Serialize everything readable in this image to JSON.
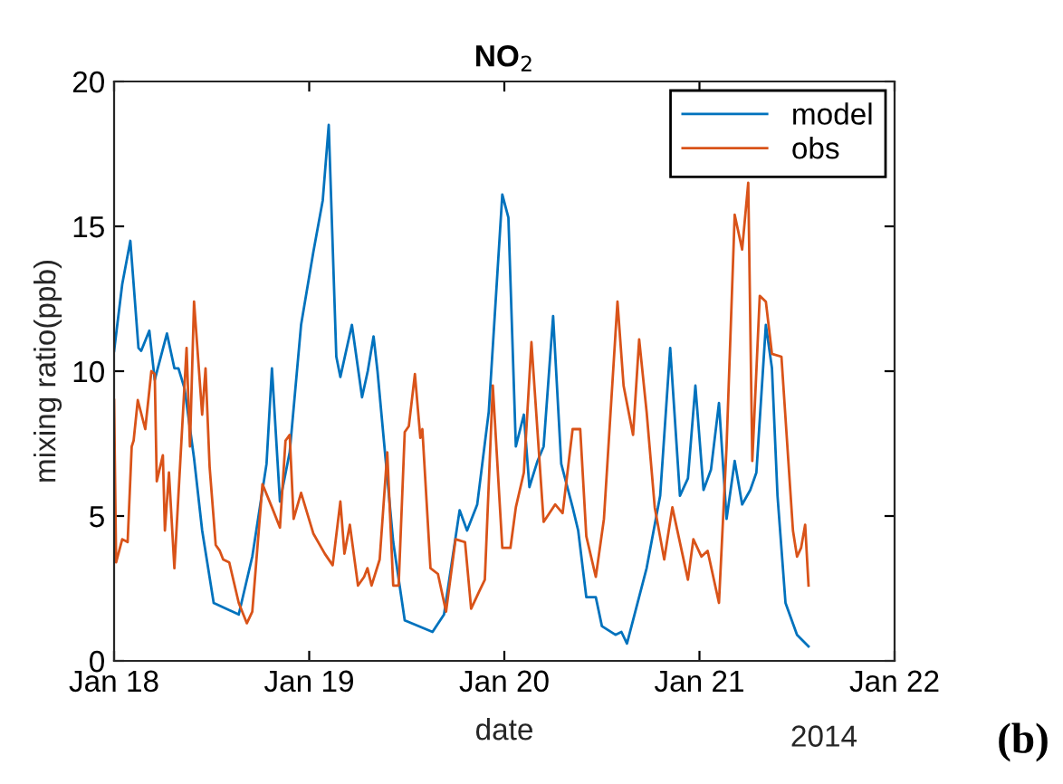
{
  "chart_data": {
    "type": "line",
    "title": "NO$_{2}$",
    "xlabel": "date",
    "ylabel": "mixing ratio(ppb)",
    "annotations": [
      "2014",
      "(b)"
    ],
    "xlim": [
      "2014-01-18",
      "2014-01-22"
    ],
    "xticks": [
      {
        "value": "2014-01-18",
        "label": "Jan 18"
      },
      {
        "value": "2014-01-19",
        "label": "Jan 19"
      },
      {
        "value": "2014-01-20",
        "label": "Jan 20"
      },
      {
        "value": "2014-01-21",
        "label": "Jan 21"
      },
      {
        "value": "2014-01-22",
        "label": "Jan 22"
      }
    ],
    "ylim": [
      0,
      20
    ],
    "yticks": [
      0,
      5,
      10,
      15,
      20
    ],
    "grid": false,
    "legend": "top right",
    "marker": "none",
    "line_style": "solid",
    "series": [
      {
        "name": "model",
        "color": "#0072bd",
        "x": [
          "2014-01-18T00:00",
          "2014-01-18T01:00",
          "2014-01-18T02:00",
          "2014-01-18T03:00",
          "2014-01-18T03:20",
          "2014-01-18T04:20",
          "2014-01-18T05:00",
          "2014-01-18T06:30",
          "2014-01-18T07:25",
          "2014-01-18T07:55",
          "2014-01-18T08:40",
          "2014-01-18T09:50",
          "2014-01-18T10:50",
          "2014-01-18T12:15",
          "2014-01-18T15:20",
          "2014-01-18T17:00",
          "2014-01-18T18:45",
          "2014-01-18T19:25",
          "2014-01-18T20:24",
          "2014-01-18T21:36",
          "2014-01-18T23:00",
          "2014-01-19T00:30",
          "2014-01-19T01:40",
          "2014-01-19T02:24",
          "2014-01-19T03:20",
          "2014-01-19T03:50",
          "2014-01-19T05:15",
          "2014-01-19T06:30",
          "2014-01-19T07:12",
          "2014-01-19T07:55",
          "2014-01-19T08:24",
          "2014-01-19T10:20",
          "2014-01-19T11:45",
          "2014-01-19T15:10",
          "2014-01-19T16:35",
          "2014-01-19T18:30",
          "2014-01-19T19:25",
          "2014-01-19T20:40",
          "2014-01-19T22:05",
          "2014-01-19T23:45",
          "2014-01-20T00:30",
          "2014-01-20T01:25",
          "2014-01-20T02:24",
          "2014-01-20T03:05",
          "2014-01-20T04:05",
          "2014-01-20T04:50",
          "2014-01-20T06:00",
          "2014-01-20T07:00",
          "2014-01-20T08:24",
          "2014-01-20T09:05",
          "2014-01-20T10:05",
          "2014-01-20T11:15",
          "2014-01-20T12:00",
          "2014-01-20T13:40",
          "2014-01-20T14:24",
          "2014-01-20T15:05",
          "2014-01-20T17:30",
          "2014-01-20T19:10",
          "2014-01-20T20:24",
          "2014-01-20T21:36",
          "2014-01-20T22:35",
          "2014-01-20T23:30",
          "2014-01-21T00:30",
          "2014-01-21T01:25",
          "2014-01-21T02:24",
          "2014-01-21T03:20",
          "2014-01-21T04:20",
          "2014-01-21T05:15",
          "2014-01-21T06:15",
          "2014-01-21T07:00",
          "2014-01-21T08:10",
          "2014-01-21T08:55",
          "2014-01-21T09:36",
          "2014-01-21T10:35",
          "2014-01-21T12:00",
          "2014-01-21T13:25"
        ],
        "values": [
          10.7,
          13.0,
          14.5,
          10.8,
          10.7,
          11.4,
          9.7,
          11.3,
          10.1,
          10.1,
          9.4,
          7.0,
          4.5,
          2.0,
          1.6,
          3.6,
          6.8,
          10.1,
          5.5,
          7.2,
          11.6,
          14.1,
          15.9,
          18.5,
          10.5,
          9.8,
          11.6,
          9.1,
          10.0,
          11.2,
          10.0,
          4.1,
          1.4,
          1.0,
          1.6,
          5.2,
          4.5,
          5.4,
          8.6,
          16.1,
          15.3,
          7.4,
          8.5,
          6.0,
          6.9,
          7.4,
          11.9,
          6.8,
          5.3,
          4.5,
          2.2,
          2.2,
          1.2,
          0.9,
          1.0,
          0.6,
          3.2,
          5.7,
          10.8,
          5.7,
          6.3,
          9.5,
          5.9,
          6.6,
          8.9,
          4.9,
          6.9,
          5.4,
          5.9,
          6.5,
          11.6,
          10.1,
          5.7,
          2.0,
          0.9,
          0.5
        ]
      },
      {
        "name": "obs",
        "color": "#d95319",
        "x": [
          "2014-01-18T00:00",
          "2014-01-18T00:15",
          "2014-01-18T01:00",
          "2014-01-18T01:40",
          "2014-01-18T02:10",
          "2014-01-18T02:24",
          "2014-01-18T02:55",
          "2014-01-18T03:50",
          "2014-01-18T04:35",
          "2014-01-18T05:00",
          "2014-01-18T05:15",
          "2014-01-18T06:00",
          "2014-01-18T06:15",
          "2014-01-18T06:45",
          "2014-01-18T07:25",
          "2014-01-18T08:55",
          "2014-01-18T09:20",
          "2014-01-18T09:50",
          "2014-01-18T10:50",
          "2014-01-18T11:15",
          "2014-01-18T11:45",
          "2014-01-18T12:30",
          "2014-01-18T13:00",
          "2014-01-18T13:25",
          "2014-01-18T14:10",
          "2014-01-18T15:20",
          "2014-01-18T16:20",
          "2014-01-18T17:00",
          "2014-01-18T18:15",
          "2014-01-18T19:25",
          "2014-01-18T20:24",
          "2014-01-18T21:05",
          "2014-01-18T21:36",
          "2014-01-18T22:05",
          "2014-01-18T23:00",
          "2014-01-19T00:30",
          "2014-01-19T01:55",
          "2014-01-19T02:53",
          "2014-01-19T03:50",
          "2014-01-19T04:20",
          "2014-01-19T05:00",
          "2014-01-19T06:00",
          "2014-01-19T06:45",
          "2014-01-19T07:10",
          "2014-01-19T07:40",
          "2014-01-19T08:40",
          "2014-01-19T09:36",
          "2014-01-19T10:20",
          "2014-01-19T11:00",
          "2014-01-19T11:45",
          "2014-01-19T12:15",
          "2014-01-19T13:00",
          "2014-01-19T13:40",
          "2014-01-19T13:55",
          "2014-01-19T14:55",
          "2014-01-19T15:50",
          "2014-01-19T16:50",
          "2014-01-19T18:00",
          "2014-01-19T19:10",
          "2014-01-19T19:55",
          "2014-01-19T20:55",
          "2014-01-19T21:36",
          "2014-01-19T22:35",
          "2014-01-19T23:45",
          "2014-01-20T00:45",
          "2014-01-20T01:25",
          "2014-01-20T02:24",
          "2014-01-20T03:20",
          "2014-01-20T04:05",
          "2014-01-20T04:50",
          "2014-01-20T06:15",
          "2014-01-20T07:10",
          "2014-01-20T08:24",
          "2014-01-20T09:20",
          "2014-01-20T10:05",
          "2014-01-20T11:15",
          "2014-01-20T12:15",
          "2014-01-20T13:55",
          "2014-01-20T14:40",
          "2014-01-20T15:50",
          "2014-01-20T16:35",
          "2014-01-20T17:30",
          "2014-01-20T18:30",
          "2014-01-20T19:40",
          "2014-01-20T20:40",
          "2014-01-20T22:35",
          "2014-01-20T23:15",
          "2014-01-21T00:15",
          "2014-01-21T01:00",
          "2014-01-21T02:24",
          "2014-01-21T03:20",
          "2014-01-21T04:20",
          "2014-01-21T05:15",
          "2014-01-21T06:00",
          "2014-01-21T06:30",
          "2014-01-21T07:25",
          "2014-01-21T08:10",
          "2014-01-21T08:55",
          "2014-01-21T10:05",
          "2014-01-21T11:30",
          "2014-01-21T12:00",
          "2014-01-21T12:30",
          "2014-01-21T13:00",
          "2014-01-21T13:25"
        ],
        "values": [
          9.0,
          3.4,
          4.2,
          4.1,
          7.4,
          7.6,
          9.0,
          8.0,
          10.0,
          9.9,
          6.2,
          7.1,
          4.5,
          6.5,
          3.2,
          10.8,
          7.4,
          12.4,
          8.5,
          10.1,
          6.7,
          4.0,
          3.8,
          3.5,
          3.4,
          2.0,
          1.3,
          1.7,
          6.1,
          5.3,
          4.6,
          7.6,
          7.8,
          4.9,
          5.8,
          4.4,
          3.7,
          3.3,
          5.5,
          3.7,
          4.7,
          2.6,
          2.9,
          3.2,
          2.6,
          3.5,
          7.2,
          2.6,
          2.6,
          7.9,
          8.1,
          9.9,
          7.7,
          8.0,
          3.2,
          3.0,
          1.7,
          4.2,
          4.1,
          1.8,
          2.4,
          2.8,
          9.5,
          3.9,
          3.9,
          5.3,
          6.5,
          11.0,
          7.9,
          4.8,
          5.4,
          5.1,
          8.0,
          8.0,
          4.3,
          2.9,
          4.9,
          12.4,
          9.5,
          7.8,
          11.1,
          8.6,
          5.3,
          3.5,
          5.3,
          2.8,
          4.2,
          3.6,
          3.8,
          2.0,
          7.4,
          15.4,
          14.2,
          16.5,
          6.9,
          12.6,
          12.4,
          10.6,
          10.5,
          4.5,
          3.6,
          3.9,
          4.7,
          2.6
        ]
      }
    ]
  }
}
